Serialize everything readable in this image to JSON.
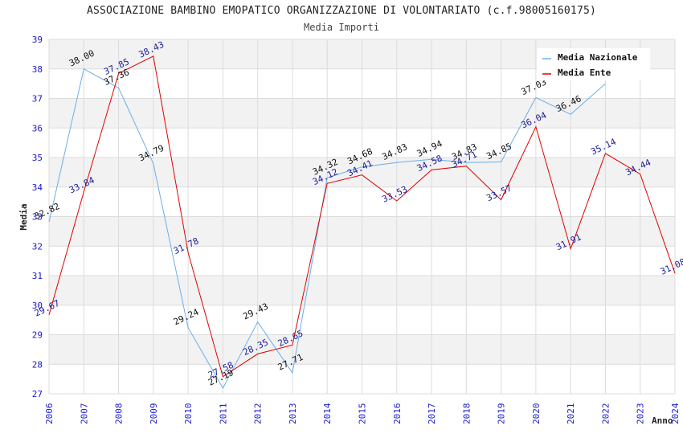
{
  "chart_data": {
    "type": "line",
    "title": "ASSOCIAZIONE BAMBINO EMOPATICO ORGANIZZAZIONE DI VOLONTARIATO (c.f.98005160175)",
    "subtitle": "Media Importi",
    "xlabel": "Anno",
    "ylabel": "Media",
    "ylim": [
      27,
      39
    ],
    "yticks": [
      "27",
      "28",
      "29",
      "30",
      "31",
      "32",
      "33",
      "34",
      "35",
      "36",
      "37",
      "38",
      "39"
    ],
    "x": [
      "2006",
      "2007",
      "2008",
      "2009",
      "2010",
      "2011",
      "2012",
      "2013",
      "2014",
      "2015",
      "2016",
      "2017",
      "2018",
      "2019",
      "2020",
      "2021",
      "2022",
      "2023",
      "2024"
    ],
    "grid": true,
    "legend_position": "top-right",
    "series": [
      {
        "name": "Media Nazionale",
        "color": "#6aaee8",
        "values": [
          32.82,
          38.0,
          37.36,
          34.79,
          29.24,
          27.19,
          29.43,
          27.71,
          34.32,
          34.68,
          34.83,
          34.94,
          34.83,
          34.85,
          37.03,
          36.46,
          37.5,
          null,
          null
        ],
        "labels": [
          "32.82",
          "38.00",
          "37.36",
          "34.79",
          "29.24",
          "27.19",
          "29.43",
          "27.71",
          "34.32",
          "34.68",
          "34.83",
          "34.94",
          "34.83",
          "34.85",
          "37.03",
          "36.46",
          "",
          "",
          ""
        ]
      },
      {
        "name": "Media Ente",
        "color": "#e00000",
        "values": [
          29.67,
          33.84,
          37.85,
          38.43,
          31.78,
          27.58,
          28.35,
          28.65,
          34.12,
          34.41,
          33.53,
          34.58,
          34.71,
          33.57,
          36.04,
          31.91,
          35.14,
          34.44,
          31.08
        ],
        "labels": [
          "29.67",
          "33.84",
          "37.85",
          "38.43",
          "31.78",
          "27.58",
          "28.35",
          "28.65",
          "34.12",
          "34.41",
          "33.53",
          "34.58",
          "34.71",
          "33.57",
          "36.04",
          "31.91",
          "35.14",
          "34.44",
          "31.08"
        ]
      }
    ]
  }
}
